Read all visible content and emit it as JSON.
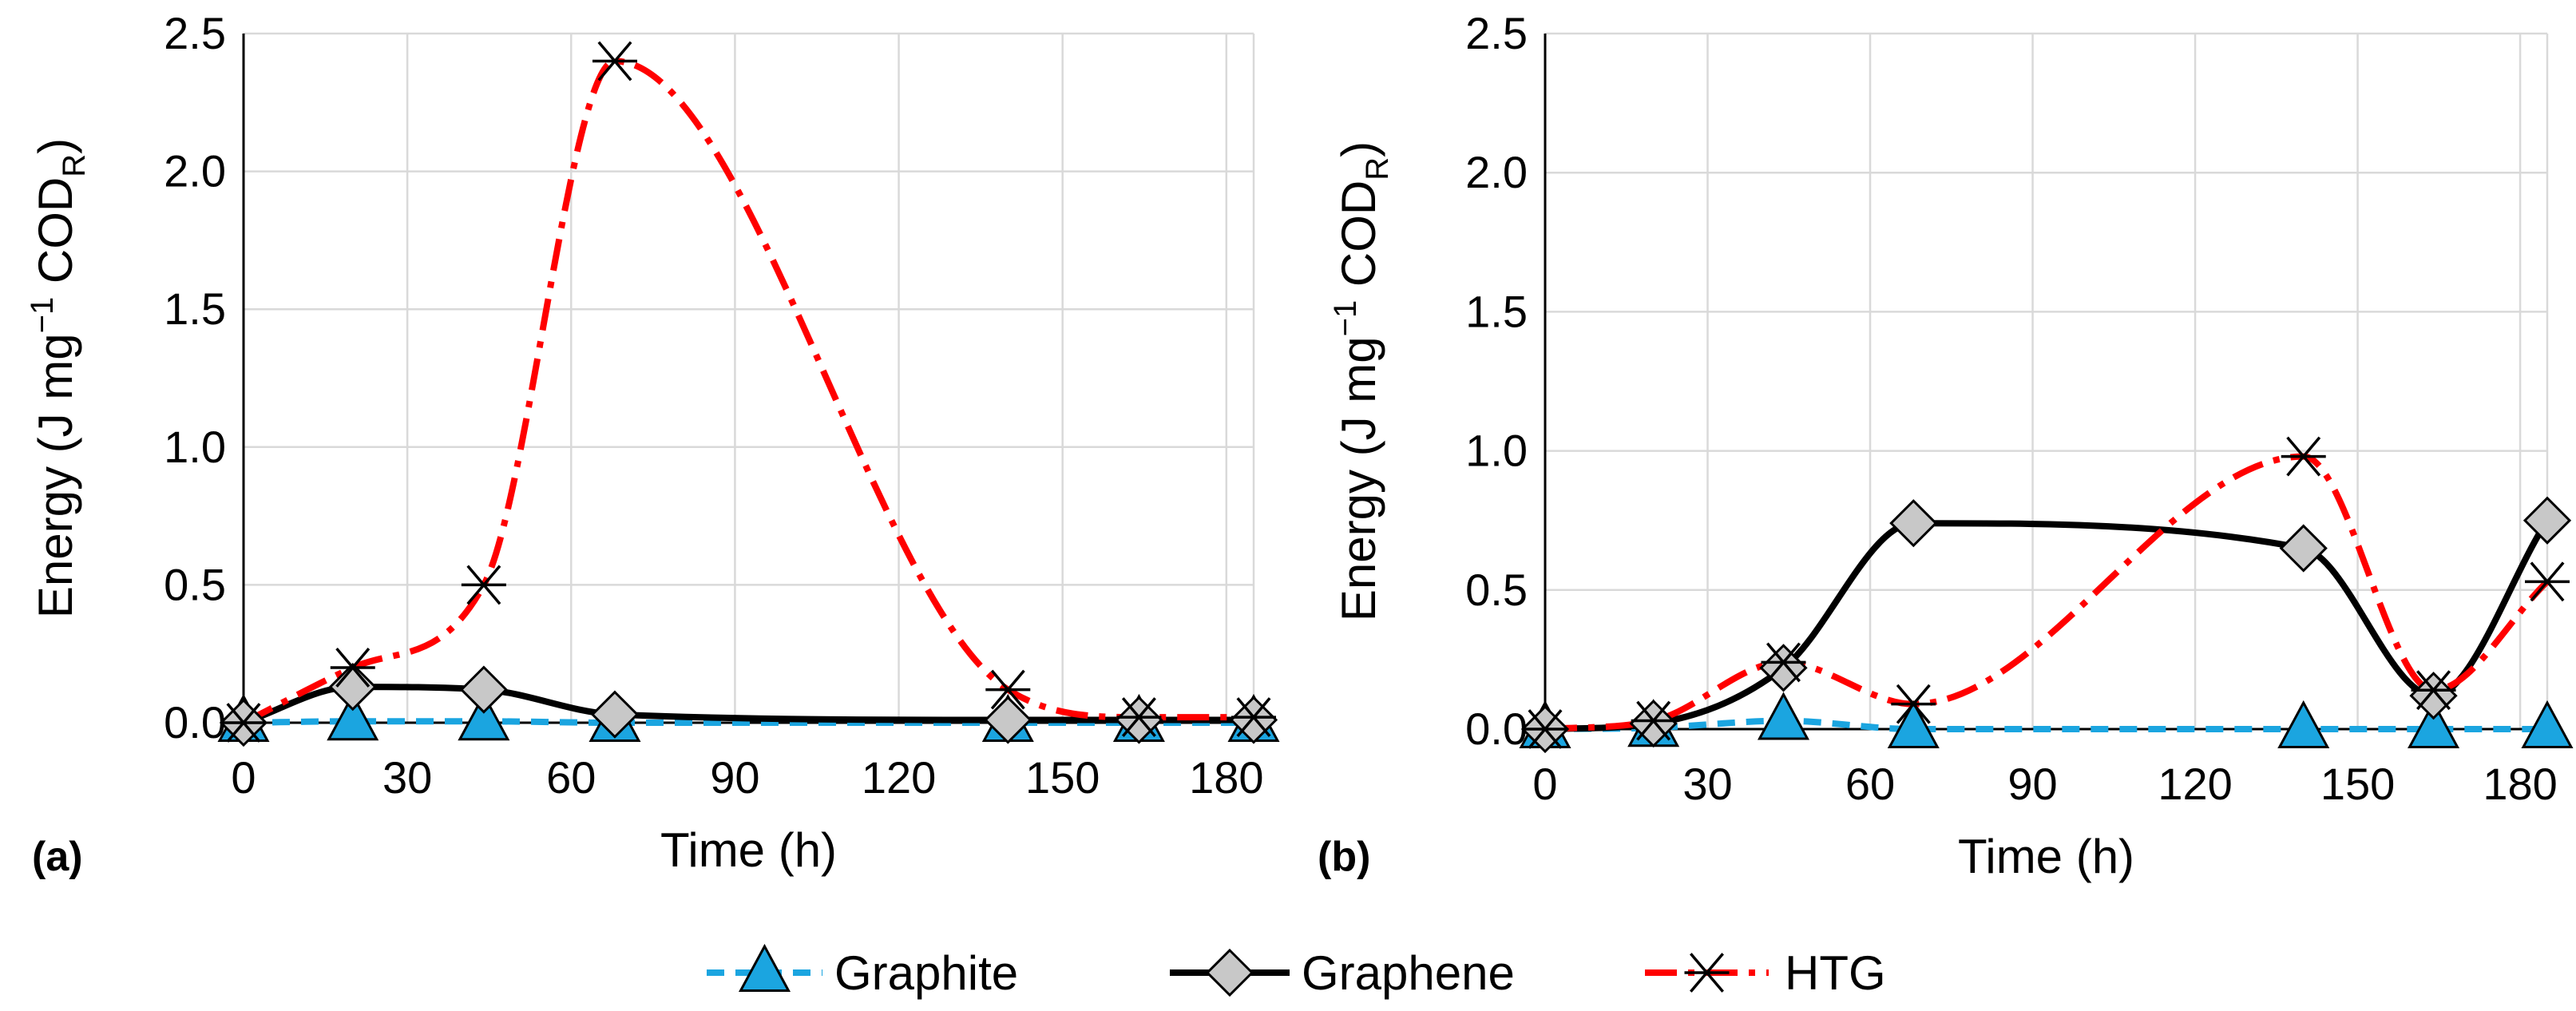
{
  "chart_data": [
    {
      "type": "line",
      "panel_label": "(a)",
      "xlabel": "Time (h)",
      "ylabel": "Energy  (J mg",
      "ylabel_sup": "−1",
      "ylabel_mid": " COD",
      "ylabel_sub": "R",
      "ylabel_end": ")",
      "xlim": [
        0,
        185
      ],
      "ylim": [
        0,
        2.5
      ],
      "xticks": [
        0,
        30,
        60,
        90,
        120,
        150,
        180
      ],
      "yticks": [
        "0.0",
        "0.5",
        "1.0",
        "1.5",
        "2.0",
        "2.5"
      ],
      "grid": true,
      "series": [
        {
          "name": "Graphite",
          "x": [
            0,
            20,
            44,
            68,
            140,
            164,
            185
          ],
          "y": [
            0,
            0.005,
            0.005,
            0,
            0,
            0,
            0
          ]
        },
        {
          "name": "Graphene",
          "x": [
            0,
            20,
            44,
            68,
            140,
            164,
            185
          ],
          "y": [
            0,
            0.13,
            0.12,
            0.03,
            0.01,
            0.01,
            0.01
          ]
        },
        {
          "name": "HTG",
          "x": [
            0,
            20,
            44,
            68,
            140,
            164,
            185
          ],
          "y": [
            0,
            0.2,
            0.5,
            2.4,
            0.12,
            0.02,
            0.02
          ]
        }
      ]
    },
    {
      "type": "line",
      "panel_label": "(b)",
      "xlabel": "Time (h)",
      "ylabel": "Energy  (J mg",
      "ylabel_sup": "−1",
      "ylabel_mid": " COD",
      "ylabel_sub": "R",
      "ylabel_end": ")",
      "xlim": [
        0,
        185
      ],
      "ylim": [
        0,
        2.5
      ],
      "xticks": [
        0,
        30,
        60,
        90,
        120,
        150,
        180
      ],
      "yticks": [
        "0.0",
        "0.5",
        "1.0",
        "1.5",
        "2.0",
        "2.5"
      ],
      "grid": true,
      "series": [
        {
          "name": "Graphite",
          "x": [
            0,
            20,
            44,
            68,
            140,
            164,
            185
          ],
          "y": [
            0,
            0.005,
            0.03,
            0,
            0,
            0,
            0
          ]
        },
        {
          "name": "Graphene",
          "x": [
            0,
            20,
            44,
            68,
            140,
            164,
            185
          ],
          "y": [
            0,
            0.02,
            0.22,
            0.74,
            0.65,
            0.12,
            0.75
          ]
        },
        {
          "name": "HTG",
          "x": [
            0,
            20,
            44,
            68,
            140,
            164,
            185
          ],
          "y": [
            0,
            0.03,
            0.24,
            0.09,
            0.98,
            0.14,
            0.53
          ]
        }
      ]
    }
  ],
  "legend": [
    {
      "name": "Graphite",
      "color": "#1BA5E0",
      "marker": "triangle",
      "dash": "dash"
    },
    {
      "name": "Graphene",
      "color": "#000000",
      "marker": "diamond",
      "dash": "solid"
    },
    {
      "name": "HTG",
      "color": "#FF0000",
      "marker": "asterisk",
      "dash": "dashdot"
    }
  ]
}
